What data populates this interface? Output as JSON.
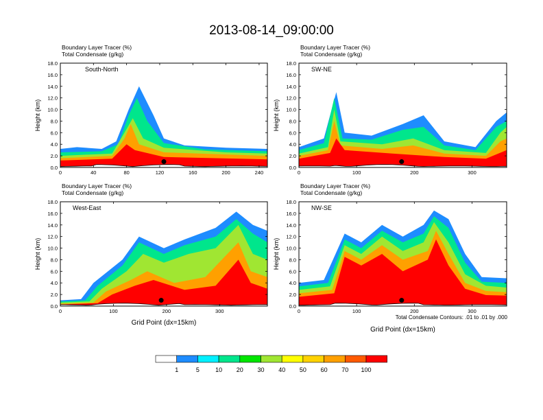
{
  "figure": {
    "title": "2013-08-14_09:00:00",
    "footnote": "Total Condensate Contours: .01 to .01 by .000"
  },
  "colorbar": {
    "colors": [
      "#ffffff",
      "#1e8cff",
      "#00f0ff",
      "#00e68c",
      "#00e600",
      "#a0e632",
      "#ffff00",
      "#ffd200",
      "#ffa000",
      "#ff5a00",
      "#ff0000"
    ],
    "labels": [
      "1",
      "5",
      "10",
      "20",
      "30",
      "40",
      "50",
      "60",
      "70",
      "100"
    ]
  },
  "chart_data": [
    {
      "type": "heatmap",
      "variables": [
        "Boundary Layer Tracer   (%)",
        "Total Condensate   (g/kg)"
      ],
      "label": "South-North",
      "ylabel": "Height (km)",
      "xlabel": "",
      "xlim": [
        0,
        250
      ],
      "ylim": [
        0,
        18
      ],
      "xticks": [
        "0",
        "40",
        "80",
        "120",
        "160",
        "200",
        "240"
      ],
      "yticks": [
        "0.0",
        "2.0",
        "4.0",
        "6.0",
        "8.0",
        "10.0",
        "12.0",
        "14.0",
        "16.0",
        "18.0"
      ],
      "marker_x": 125
    },
    {
      "type": "heatmap",
      "variables": [
        "Boundary Layer Tracer   (%)",
        "Total Condensate   (g/kg)"
      ],
      "label": "SW-NE",
      "ylabel": "Height (km)",
      "xlabel": "",
      "xlim": [
        0,
        360
      ],
      "ylim": [
        0,
        18
      ],
      "xticks": [
        "0",
        "100",
        "200",
        "300"
      ],
      "yticks": [
        "0.0",
        "2.0",
        "4.0",
        "6.0",
        "8.0",
        "10.0",
        "12.0",
        "14.0",
        "16.0",
        "18.0"
      ],
      "marker_x": 178
    },
    {
      "type": "heatmap",
      "variables": [
        "Boundary Layer Tracer   (%)",
        "Total Condensate   (g/kg)"
      ],
      "label": "West-East",
      "ylabel": "Height (km)",
      "xlabel": "Grid Point (dx=15km)",
      "xlim": [
        0,
        390
      ],
      "ylim": [
        0,
        18
      ],
      "xticks": [
        "0",
        "100",
        "200",
        "300"
      ],
      "yticks": [
        "0.0",
        "2.0",
        "4.0",
        "6.0",
        "8.0",
        "10.0",
        "12.0",
        "14.0",
        "16.0",
        "18.0"
      ],
      "marker_x": 190
    },
    {
      "type": "heatmap",
      "variables": [
        "Boundary Layer Tracer   (%)",
        "Total Condensate   (g/kg)"
      ],
      "label": "NW-SE",
      "ylabel": "Height (km)",
      "xlabel": "Grid Point (dx=15km)",
      "xlim": [
        0,
        360
      ],
      "ylim": [
        0,
        18
      ],
      "xticks": [
        "0",
        "100",
        "200",
        "300"
      ],
      "yticks": [
        "0.0",
        "2.0",
        "4.0",
        "6.0",
        "8.0",
        "10.0",
        "12.0",
        "14.0",
        "16.0",
        "18.0"
      ],
      "marker_x": 178
    }
  ]
}
